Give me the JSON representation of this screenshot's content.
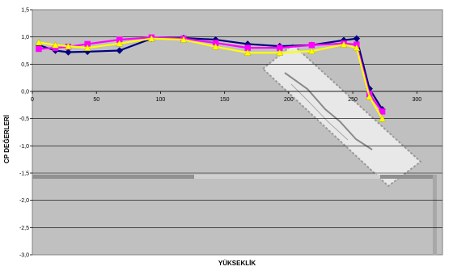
{
  "chart_data": {
    "type": "line",
    "title": "",
    "xlabel": "YÜKSEKLİK",
    "ylabel": "CP DEĞERLERİ",
    "xlim": [
      0,
      320
    ],
    "ylim": [
      -3.0,
      1.5
    ],
    "x_ticks": [
      0,
      50,
      100,
      150,
      200,
      250,
      300
    ],
    "y_ticks": [
      1.5,
      1.0,
      0.5,
      0.0,
      -0.5,
      -1.0,
      -1.5,
      -2.0,
      -2.5,
      -3.0
    ],
    "x_tick_labels": [
      "0",
      "50",
      "100",
      "150",
      "200",
      "250",
      "300"
    ],
    "y_tick_labels": [
      "1,5",
      "1,0",
      "0,5",
      "0,0",
      "-0,5",
      "-1,0",
      "-1,5",
      "-2,0",
      "-2,5",
      "-3,0"
    ],
    "grid": true,
    "legend": "none",
    "colors": {
      "plot_background": "#c0c0c0",
      "gridline": "#000000",
      "series_blue": "#000080",
      "series_magenta": "#ff00ff",
      "series_yellow": "#ffff00"
    },
    "series": [
      {
        "marker": "diamond",
        "color": "#000080",
        "x": [
          5,
          18,
          28,
          43,
          68,
          93,
          118,
          143,
          168,
          193,
          218,
          243,
          253,
          263,
          273
        ],
        "y": [
          0.85,
          0.75,
          0.72,
          0.73,
          0.75,
          0.97,
          0.98,
          0.95,
          0.87,
          0.83,
          0.85,
          0.94,
          0.97,
          0.05,
          -0.33
        ]
      },
      {
        "marker": "square",
        "color": "#ff00ff",
        "x": [
          5,
          18,
          28,
          43,
          68,
          93,
          118,
          143,
          168,
          193,
          218,
          243,
          253,
          263,
          273
        ],
        "y": [
          0.78,
          0.8,
          0.82,
          0.87,
          0.95,
          0.99,
          0.97,
          0.89,
          0.8,
          0.8,
          0.85,
          0.88,
          0.86,
          -0.05,
          -0.37
        ]
      },
      {
        "marker": "triangle",
        "color": "#ffff00",
        "x": [
          5,
          18,
          28,
          43,
          68,
          93,
          118,
          143,
          168,
          193,
          218,
          243,
          253,
          263,
          273
        ],
        "y": [
          0.9,
          0.85,
          0.83,
          0.8,
          0.88,
          0.97,
          0.95,
          0.82,
          0.71,
          0.71,
          0.74,
          0.86,
          0.8,
          -0.1,
          -0.5
        ]
      }
    ]
  }
}
